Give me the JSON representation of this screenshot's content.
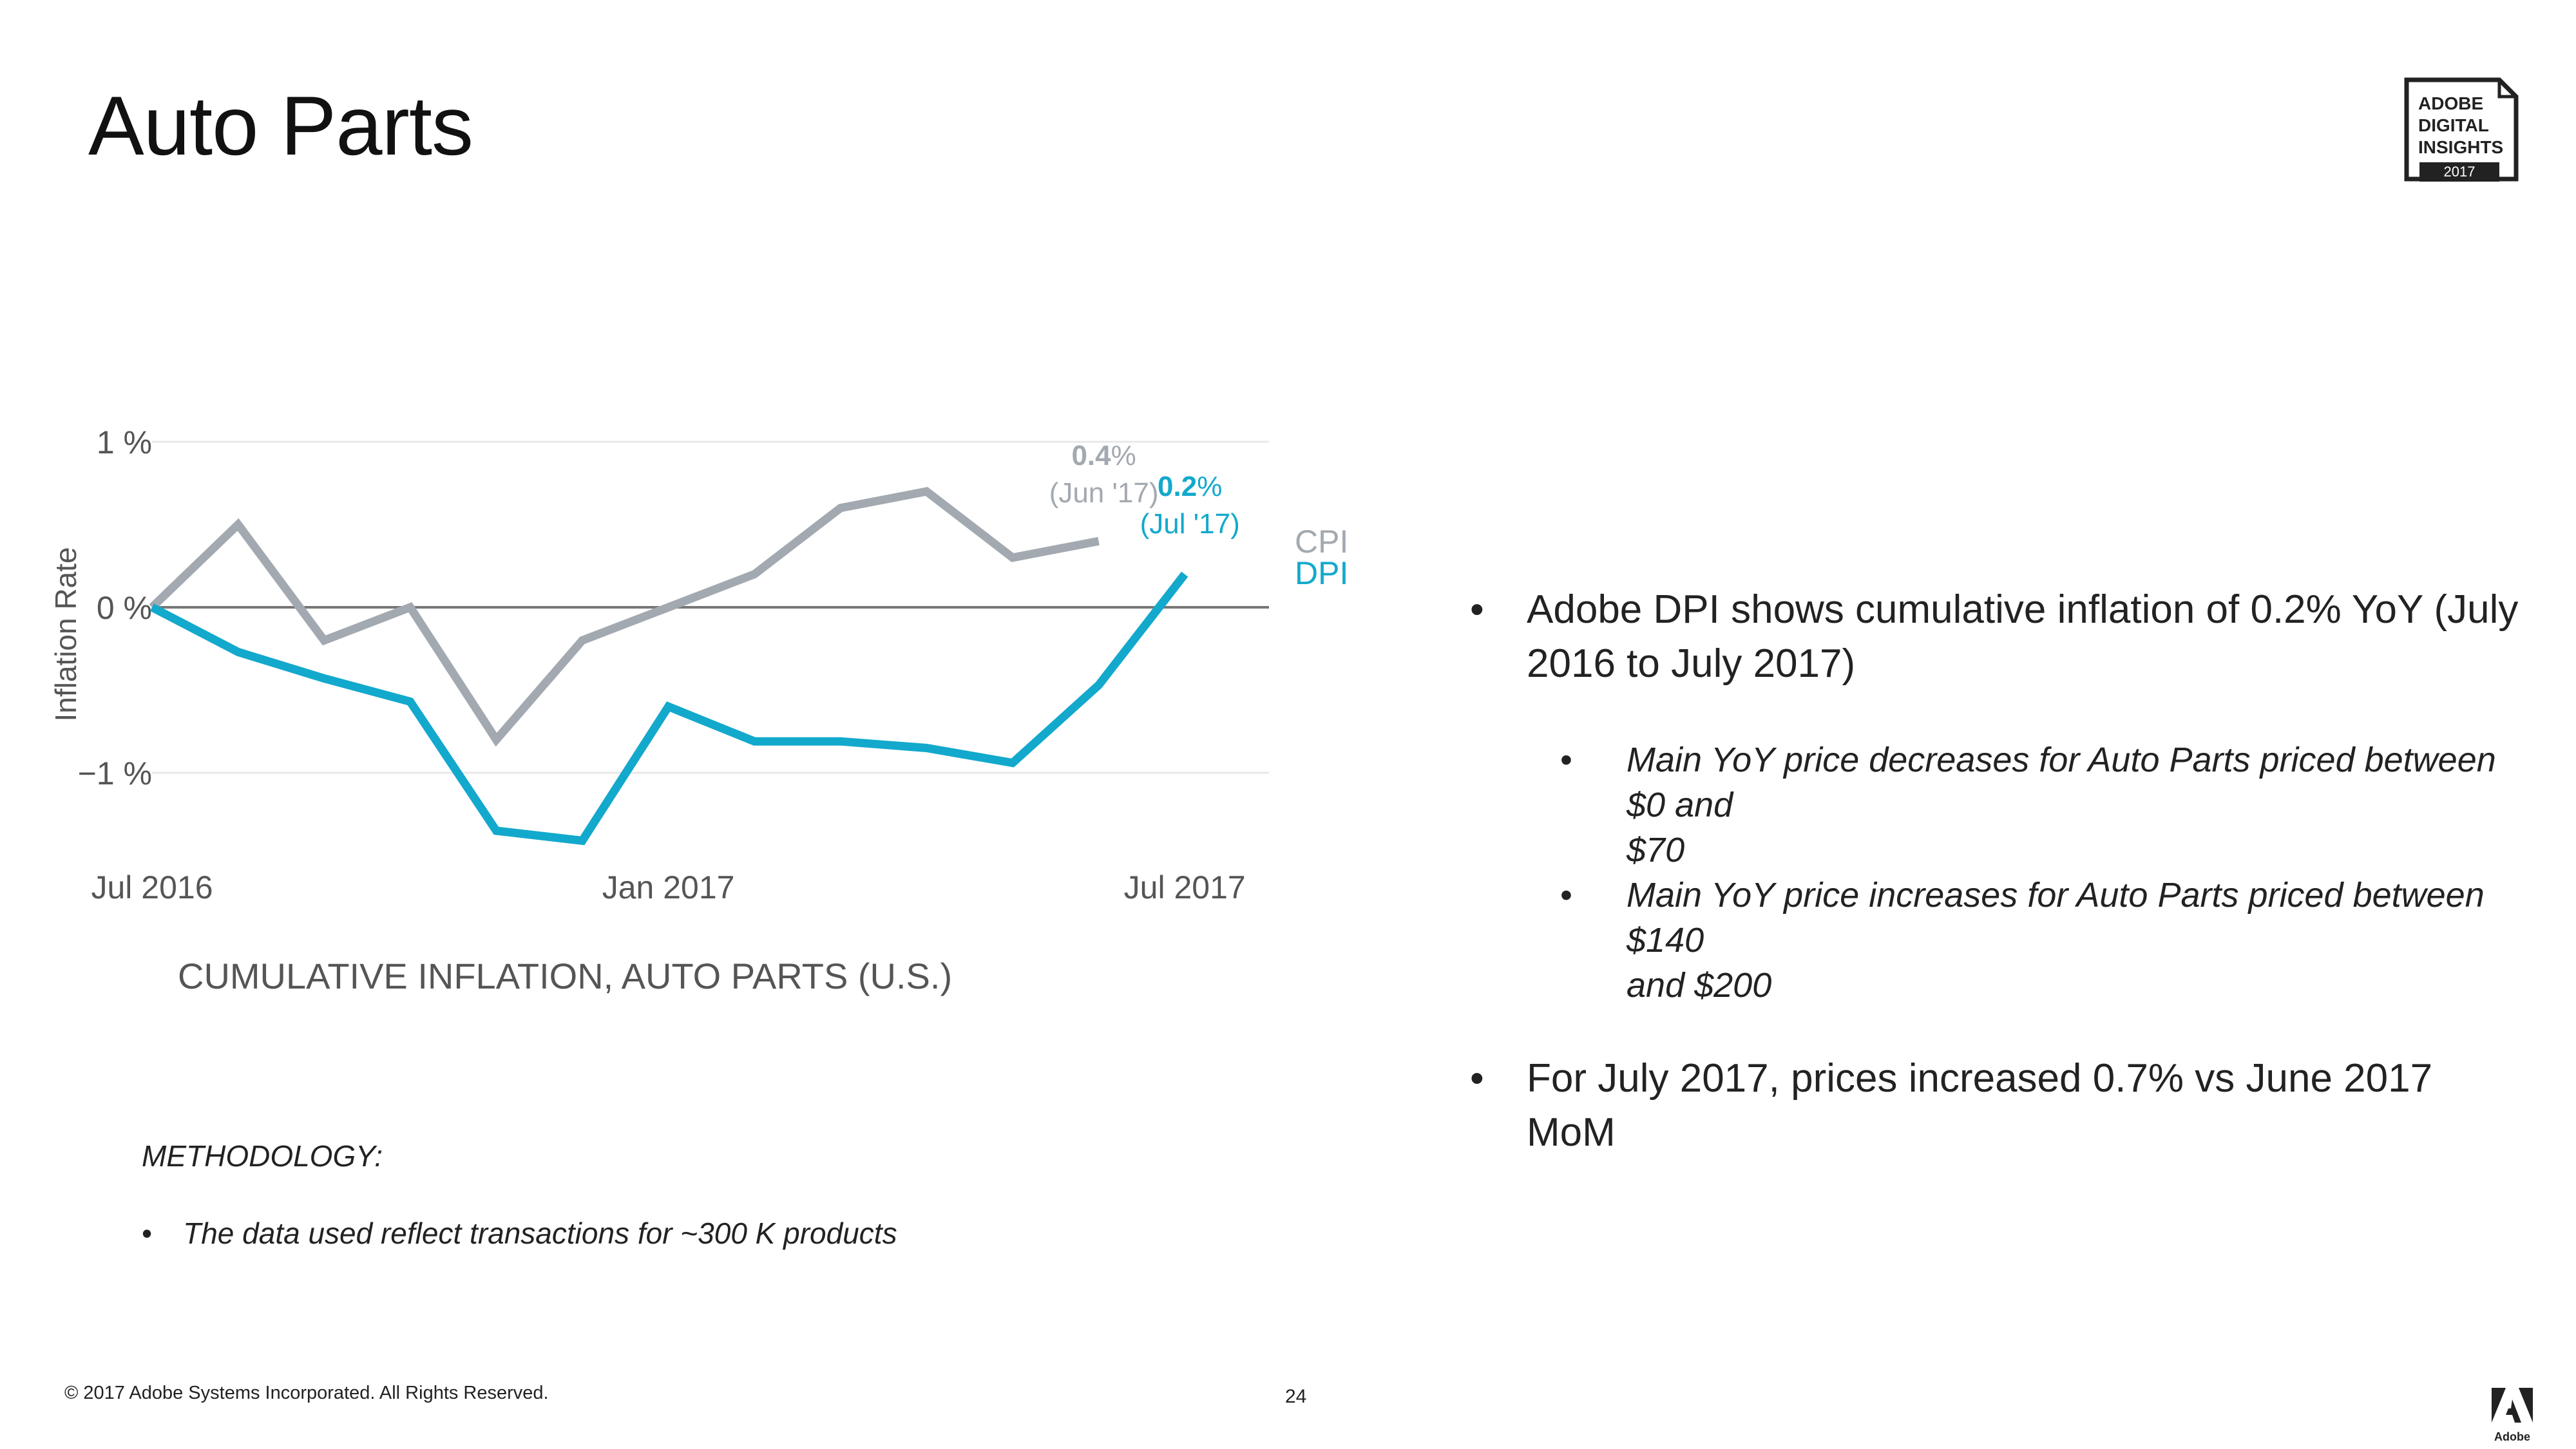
{
  "slide": {
    "title": "Auto Parts",
    "page_number": "24",
    "footer": "© 2017 Adobe Systems Incorporated.  All Rights Reserved."
  },
  "logo": {
    "line1": "ADOBE",
    "line2": "DIGITAL",
    "line3": "INSIGHTS",
    "year": "2017"
  },
  "bullets": [
    {
      "text": "Adobe DPI shows cumulative inflation of 0.2% YoY (July 2016 to July 2017)",
      "lines": [
        "Adobe DPI shows cumulative inflation of 0.2% YoY (July",
        "2016 to July 2017)"
      ],
      "sub": [
        {
          "lines": [
            "Main YoY price decreases for Auto Parts priced between $0 and",
            "$70"
          ]
        },
        {
          "lines": [
            "Main YoY price increases for Auto Parts priced between $140",
            "and $200"
          ]
        }
      ]
    },
    {
      "text": "For July 2017, prices increased 0.7% vs June 2017 MoM",
      "lines": [
        "For July 2017, prices increased 0.7% vs June 2017 MoM"
      ]
    }
  ],
  "methodology": {
    "heading": "METHODOLOGY:",
    "items": [
      "The data used reflect transactions for ~300 K products"
    ]
  },
  "colors": {
    "cpi": "#a3a9b0",
    "dpi": "#12a9cc",
    "zero_line": "#777777",
    "grid": "#e8e8e8",
    "axis_text": "#555555"
  },
  "chart_data": {
    "type": "line",
    "title": "CUMULATIVE INFLATION, AUTO PARTS (U.S.)",
    "xlabel": "",
    "ylabel": "Inflation Rate",
    "x_tick_labels": [
      "Jul 2016",
      "Jan 2017",
      "Jul 2017"
    ],
    "y_tick_labels": [
      "1 %",
      "0 %",
      "−1 %"
    ],
    "y_ticks": [
      1,
      0,
      -1
    ],
    "ylim": [
      -1.4,
      1.0
    ],
    "grid": true,
    "legend": {
      "position": "right",
      "entries": [
        "CPI",
        "DPI"
      ]
    },
    "series": [
      {
        "name": "CPI",
        "x": [
          "2016-07",
          "2016-08",
          "2016-09",
          "2016-10",
          "2016-11",
          "2016-12",
          "2017-01",
          "2017-02",
          "2017-03",
          "2017-04",
          "2017-05",
          "2017-06"
        ],
        "values": [
          0.0,
          0.5,
          -0.2,
          0.0,
          -0.8,
          -0.2,
          0.0,
          0.2,
          0.6,
          0.7,
          0.3,
          0.4
        ],
        "end_label_value": "0.4",
        "end_label_unit": "%",
        "end_label_date": "(Jun '17)"
      },
      {
        "name": "DPI",
        "x": [
          "2016-07",
          "2016-08",
          "2016-09",
          "2016-10",
          "2016-11",
          "2016-12",
          "2017-01",
          "2017-02",
          "2017-03",
          "2017-04",
          "2017-05",
          "2017-06",
          "2017-07"
        ],
        "values": [
          0.0,
          -0.27,
          -0.43,
          -0.57,
          -1.35,
          -1.41,
          -0.6,
          -0.81,
          -0.81,
          -0.85,
          -0.94,
          -0.47,
          0.2
        ],
        "end_label_value": "0.2",
        "end_label_unit": "%",
        "end_label_date": "(Jul '17)"
      }
    ]
  }
}
